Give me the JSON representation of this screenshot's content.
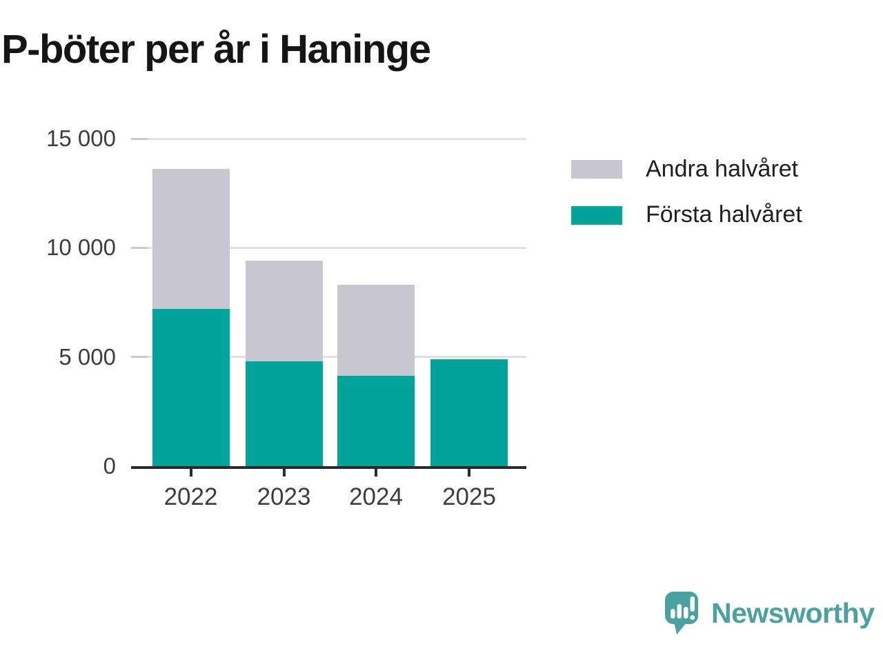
{
  "title": "P-böter per år i Haninge",
  "chart_data": {
    "type": "bar",
    "stacked": true,
    "title": "P-böter per år i Haninge",
    "categories": [
      "2022",
      "2023",
      "2024",
      "2025"
    ],
    "series": [
      {
        "name": "Första halvåret",
        "color": "#00a498",
        "values": [
          7200,
          4800,
          4150,
          4900
        ]
      },
      {
        "name": "Andra halvåret",
        "color": "#c8c6d1",
        "values": [
          6400,
          4600,
          4150,
          0
        ]
      }
    ],
    "ylim": [
      0,
      15000
    ],
    "yticks": [
      {
        "label": "15 000",
        "value": 15000
      },
      {
        "label": "10 000",
        "value": 10000
      },
      {
        "label": "5 000",
        "value": 5000
      },
      {
        "label": "0",
        "value": 0
      }
    ],
    "legend": [
      {
        "label": "Andra halvåret",
        "color": "#c8c6d1"
      },
      {
        "label": "Första halvåret",
        "color": "#00a498"
      }
    ],
    "grid": "horizontal",
    "legend_position": "right",
    "xlabel": "",
    "ylabel": ""
  },
  "colors": {
    "bar_teal": "#00a498",
    "bar_gray": "#c8c6d1",
    "axis": "#2b2b2b",
    "gridline": "#e1e1e1",
    "tick_text": "#3d3d3d",
    "title_text": "#151515"
  },
  "branding": {
    "logo_text": "Newsworthy",
    "logo_color": "#4aa2a0"
  }
}
